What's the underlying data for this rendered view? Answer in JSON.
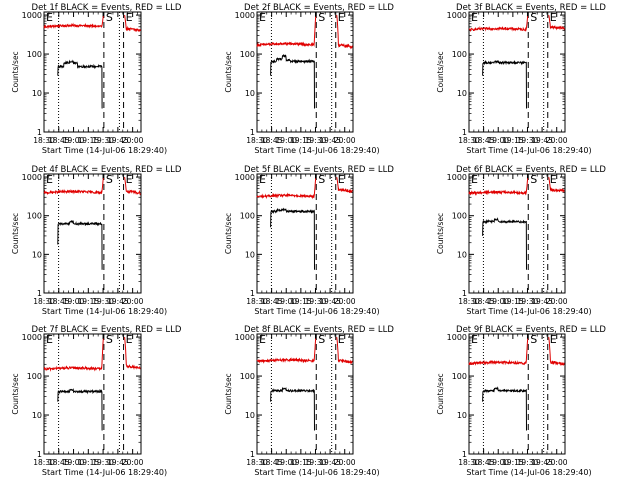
{
  "colors": {
    "events": "#000000",
    "lld": "#e00000",
    "axis": "#000000"
  },
  "common": {
    "ylabel": "Counts/sec",
    "xlabel": "Start Time (14-Jul-06 18:29:40)",
    "x_ticks": [
      "18:30",
      "18:45",
      "19:00",
      "19:15",
      "19:30",
      "19:45",
      "20:00"
    ],
    "x_tick_minutes": [
      30,
      45,
      60,
      75,
      90,
      105,
      120
    ],
    "x_range_minutes": [
      30,
      128.5
    ],
    "y_ticks": [
      "1",
      "10",
      "100",
      "1000"
    ],
    "y_tick_values": [
      1,
      10,
      100,
      1000
    ],
    "y_range": [
      1,
      1200
    ],
    "y_scale": "log",
    "markers": [
      {
        "label": "E",
        "minute": 30.0,
        "style": "dotted"
      },
      {
        "label": "S",
        "minute": 90.8,
        "style": "dashed"
      },
      {
        "label": "E",
        "minute": 110.8,
        "style": "dashed"
      }
    ],
    "dotted_lines_minutes": [
      30.0,
      44.8,
      106.6
    ]
  },
  "chart_data": [
    {
      "type": "line",
      "title": "Det 1f BLACK = Events, RED = LLD",
      "series": [
        {
          "name": "Events",
          "start_minute": 44.0,
          "end_minute": 89.0,
          "rise": 28,
          "level": 48,
          "bump": [
            60,
            64,
            58
          ]
        },
        {
          "name": "LLD",
          "start_minute": 30.0,
          "end_minute": 128.0,
          "pre": 500,
          "peak": 1000,
          "post": 450
        }
      ]
    },
    {
      "type": "line",
      "title": "Det 2f BLACK = Events, RED = LLD",
      "series": [
        {
          "name": "Events",
          "start_minute": 44.0,
          "end_minute": 89.0,
          "rise": 28,
          "level": 65,
          "bump": [
            75,
            90,
            70
          ]
        },
        {
          "name": "LLD",
          "start_minute": 30.0,
          "end_minute": 128.0,
          "pre": 170,
          "peak": 1000,
          "post": 170
        }
      ]
    },
    {
      "type": "line",
      "title": "Det 3f BLACK = Events, RED = LLD",
      "series": [
        {
          "name": "Events",
          "start_minute": 44.0,
          "end_minute": 89.0,
          "rise": 28,
          "level": 60,
          "bump": [
            60,
            64,
            60
          ]
        },
        {
          "name": "LLD",
          "start_minute": 30.0,
          "end_minute": 128.0,
          "pre": 420,
          "peak": 1000,
          "post": 500
        }
      ]
    },
    {
      "type": "line",
      "title": "Det 4f BLACK = Events, RED = LLD",
      "series": [
        {
          "name": "Events",
          "start_minute": 44.0,
          "end_minute": 89.0,
          "rise": 18,
          "level": 62,
          "bump": [
            62,
            70,
            62
          ]
        },
        {
          "name": "LLD",
          "start_minute": 30.0,
          "end_minute": 128.0,
          "pre": 390,
          "peak": 1000,
          "post": 430
        }
      ]
    },
    {
      "type": "line",
      "title": "Det 5f BLACK = Events, RED = LLD",
      "series": [
        {
          "name": "Events",
          "start_minute": 44.0,
          "end_minute": 89.0,
          "rise": 50,
          "level": 130,
          "bump": [
            140,
            145,
            130
          ]
        },
        {
          "name": "LLD",
          "start_minute": 30.0,
          "end_minute": 128.0,
          "pre": 310,
          "peak": 1000,
          "post": 480
        }
      ]
    },
    {
      "type": "line",
      "title": "Det 6f BLACK = Events, RED = LLD",
      "series": [
        {
          "name": "Events",
          "start_minute": 44.0,
          "end_minute": 89.0,
          "rise": 30,
          "level": 70,
          "bump": [
            72,
            80,
            70
          ]
        },
        {
          "name": "LLD",
          "start_minute": 30.0,
          "end_minute": 128.0,
          "pre": 380,
          "peak": 1000,
          "post": 480
        }
      ]
    },
    {
      "type": "line",
      "title": "Det 7f BLACK = Events, RED = LLD",
      "series": [
        {
          "name": "Events",
          "start_minute": 44.0,
          "end_minute": 89.0,
          "rise": 22,
          "level": 40,
          "bump": [
            40,
            44,
            40
          ]
        },
        {
          "name": "LLD",
          "start_minute": 30.0,
          "end_minute": 128.0,
          "pre": 150,
          "peak": 1000,
          "post": 180
        }
      ]
    },
    {
      "type": "line",
      "title": "Det 8f BLACK = Events, RED = LLD",
      "series": [
        {
          "name": "Events",
          "start_minute": 44.0,
          "end_minute": 89.0,
          "rise": 22,
          "level": 42,
          "bump": [
            42,
            48,
            42
          ]
        },
        {
          "name": "LLD",
          "start_minute": 30.0,
          "end_minute": 128.0,
          "pre": 240,
          "peak": 1000,
          "post": 250
        }
      ]
    },
    {
      "type": "line",
      "title": "Det 9f BLACK = Events, RED = LLD",
      "series": [
        {
          "name": "Events",
          "start_minute": 44.0,
          "end_minute": 89.0,
          "rise": 22,
          "level": 42,
          "bump": [
            42,
            48,
            42
          ]
        },
        {
          "name": "LLD",
          "start_minute": 30.0,
          "end_minute": 128.0,
          "pre": 210,
          "peak": 1000,
          "post": 230
        }
      ]
    }
  ]
}
